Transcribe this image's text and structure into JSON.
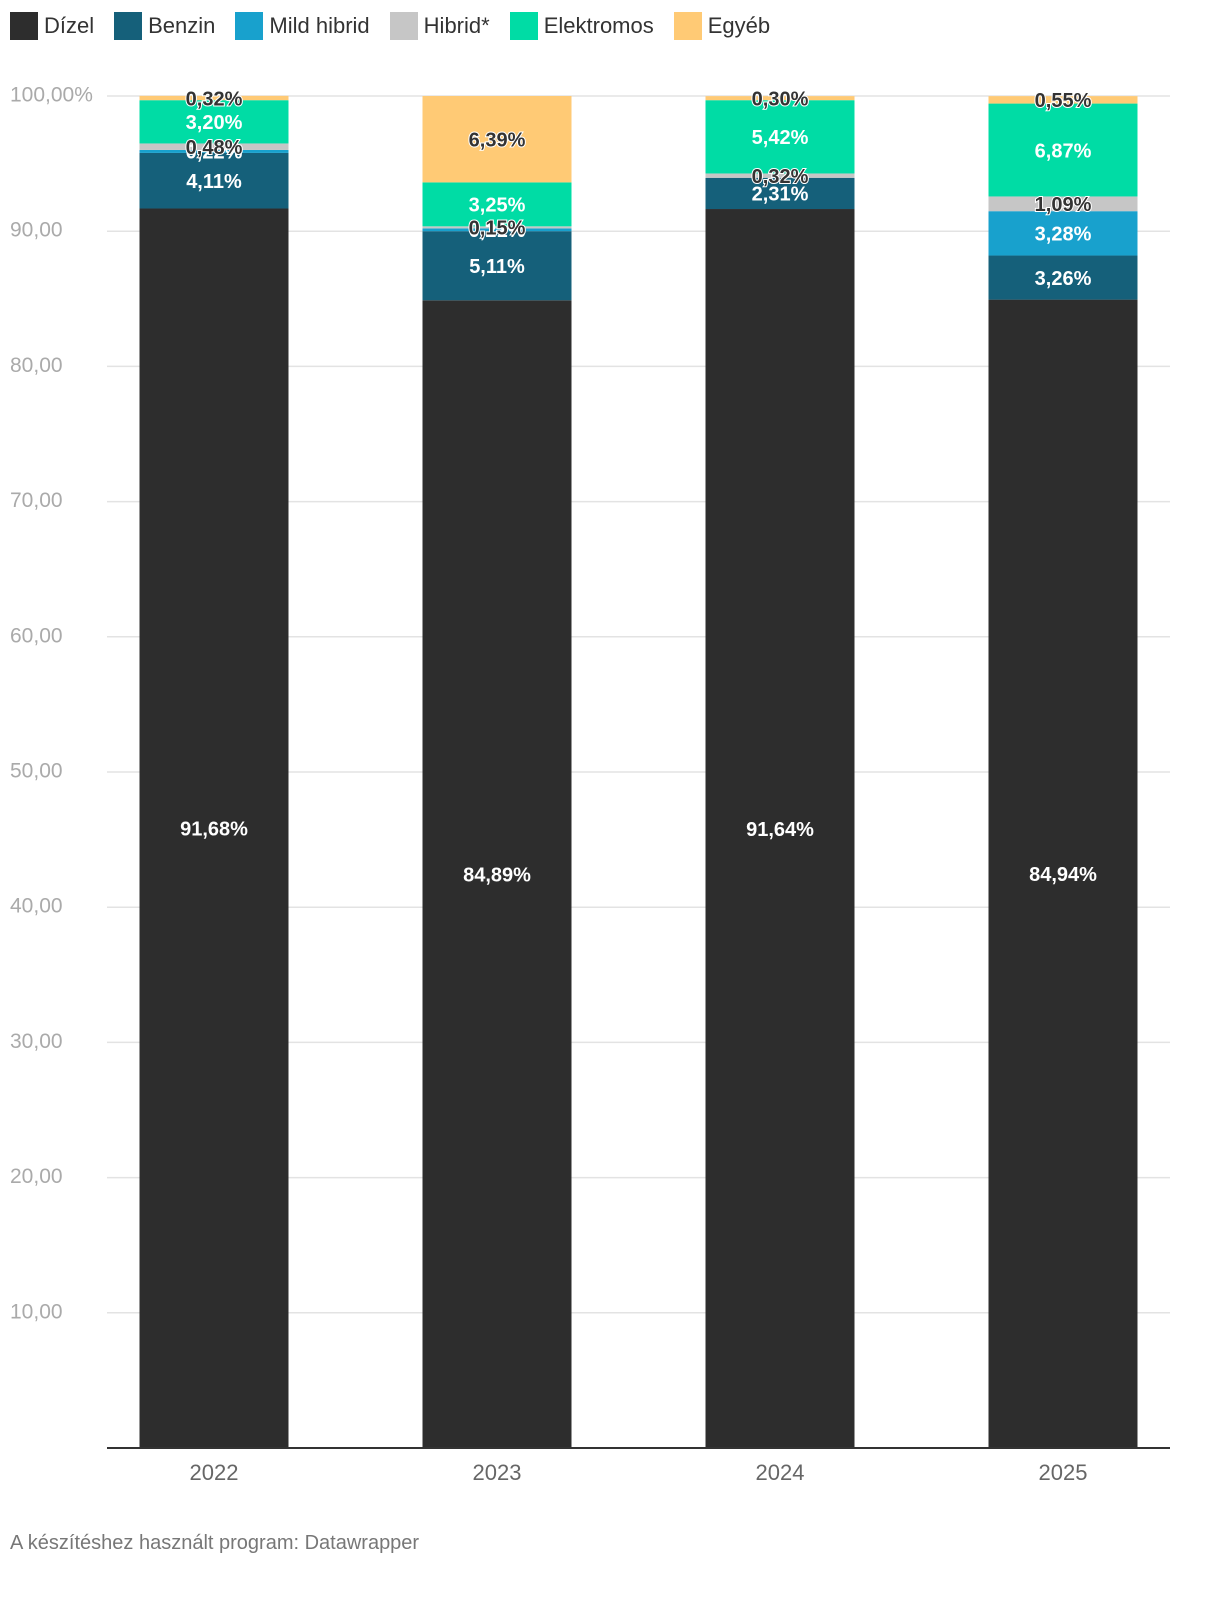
{
  "chart_data": {
    "type": "stacked-bar",
    "categories": [
      "2022",
      "2023",
      "2024",
      "2025"
    ],
    "series": [
      {
        "name": "Dízel",
        "color": "#2d2d2d",
        "values": [
          91.68,
          84.89,
          91.64,
          84.94
        ],
        "value_labels": [
          "91,68%",
          "84,89%",
          "91,64%",
          "84,94%"
        ]
      },
      {
        "name": "Benzin",
        "color": "#15607a",
        "values": [
          4.11,
          5.11,
          2.31,
          3.26
        ],
        "value_labels": [
          "4,11%",
          "5,11%",
          "2,31%",
          "3,26%"
        ]
      },
      {
        "name": "Mild hibrid",
        "color": "#18a1cd",
        "values": [
          0.22,
          0.21,
          null,
          3.28
        ],
        "value_labels": [
          "0,22%",
          "0,21%",
          null,
          "3,28%"
        ]
      },
      {
        "name": "Hibrid*",
        "color": "#c6c6c6",
        "values": [
          0.48,
          0.15,
          0.32,
          1.09
        ],
        "value_labels": [
          "0,48%",
          "0,15%",
          "0,32%",
          "1,09%"
        ]
      },
      {
        "name": "Elektromos",
        "color": "#00dca5",
        "values": [
          3.2,
          3.25,
          5.42,
          6.87
        ],
        "value_labels": [
          "3,20%",
          "3,25%",
          "5,42%",
          "6,87%"
        ]
      },
      {
        "name": "Egyéb",
        "color": "#ffca75",
        "values": [
          0.32,
          6.39,
          0.3,
          0.55
        ],
        "value_labels": [
          "0,32%",
          "6,39%",
          "0,30%",
          "0,55%"
        ]
      }
    ],
    "ylim": [
      0,
      100
    ],
    "yticks": [
      {
        "value": 10,
        "label": "10,00"
      },
      {
        "value": 20,
        "label": "20,00"
      },
      {
        "value": 30,
        "label": "30,00"
      },
      {
        "value": 40,
        "label": "40,00"
      },
      {
        "value": 50,
        "label": "50,00"
      },
      {
        "value": 60,
        "label": "60,00"
      },
      {
        "value": 70,
        "label": "70,00"
      },
      {
        "value": 80,
        "label": "80,00"
      },
      {
        "value": 90,
        "label": "90,00"
      },
      {
        "value": 100,
        "label": "100,00%"
      }
    ],
    "grid": true,
    "legend": "top",
    "credit": "A készítéshez használt program: Datawrapper"
  }
}
